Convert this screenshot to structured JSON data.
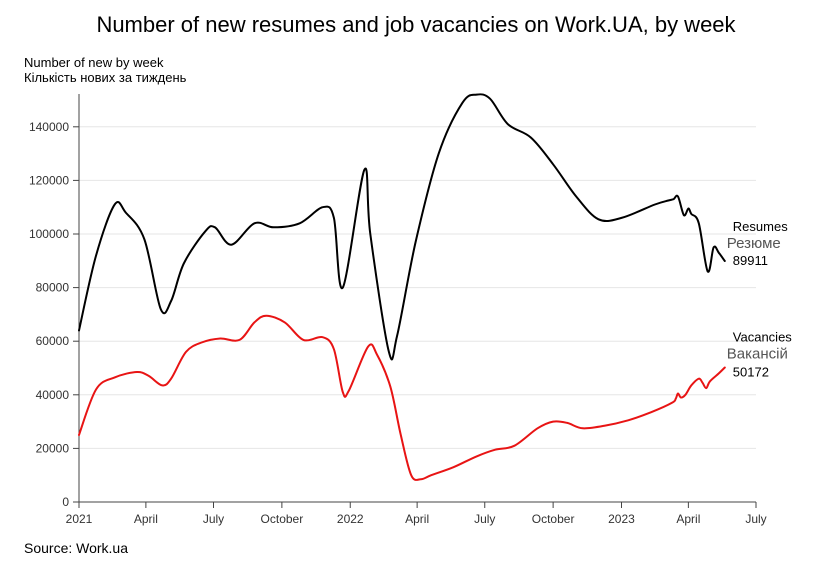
{
  "chart_data": {
    "type": "line",
    "title": "Number of new resumes and job vacancies on Work.UA, by week",
    "ylabel": "Number of new by week",
    "ylabel_uk": "Кількість нових за тиждень",
    "source": "Source: Work.ua",
    "x_range": [
      "2021-01-01",
      "2023-07-01"
    ],
    "ylim": [
      0,
      150000
    ],
    "y_ticks": [
      0,
      20000,
      40000,
      60000,
      80000,
      100000,
      120000,
      140000
    ],
    "x_ticks": [
      {
        "date": "2021-01-01",
        "label": "2021"
      },
      {
        "date": "2021-04-01",
        "label": "April"
      },
      {
        "date": "2021-07-01",
        "label": "July"
      },
      {
        "date": "2021-10-01",
        "label": "October"
      },
      {
        "date": "2022-01-01",
        "label": "2022"
      },
      {
        "date": "2022-04-01",
        "label": "April"
      },
      {
        "date": "2022-07-01",
        "label": "July"
      },
      {
        "date": "2022-10-01",
        "label": "October"
      },
      {
        "date": "2023-01-01",
        "label": "2023"
      },
      {
        "date": "2023-04-01",
        "label": "April"
      },
      {
        "date": "2023-07-01",
        "label": "July"
      }
    ],
    "grid": "horizontal",
    "series": [
      {
        "name": "Resumes",
        "name_uk": "Резюме",
        "last_value": "89911",
        "color": "#000000",
        "points": [
          [
            "2021-01-01",
            64000
          ],
          [
            "2021-01-24",
            92000
          ],
          [
            "2021-02-18",
            111000
          ],
          [
            "2021-03-05",
            108000
          ],
          [
            "2021-03-30",
            98000
          ],
          [
            "2021-04-21",
            72000
          ],
          [
            "2021-05-05",
            75000
          ],
          [
            "2021-05-22",
            89000
          ],
          [
            "2021-06-20",
            101000
          ],
          [
            "2021-07-03",
            102500
          ],
          [
            "2021-07-25",
            96000
          ],
          [
            "2021-08-25",
            104000
          ],
          [
            "2021-09-20",
            102500
          ],
          [
            "2021-10-25",
            104000
          ],
          [
            "2021-11-25",
            110000
          ],
          [
            "2021-12-10",
            106000
          ],
          [
            "2021-12-22",
            80000
          ],
          [
            "2022-01-20",
            124000
          ],
          [
            "2022-01-28",
            100000
          ],
          [
            "2022-02-22",
            56000
          ],
          [
            "2022-03-05",
            62000
          ],
          [
            "2022-03-30",
            97000
          ],
          [
            "2022-04-30",
            130000
          ],
          [
            "2022-06-01",
            149000
          ],
          [
            "2022-06-20",
            152000
          ],
          [
            "2022-07-08",
            150500
          ],
          [
            "2022-08-01",
            141000
          ],
          [
            "2022-09-01",
            136000
          ],
          [
            "2022-10-01",
            126000
          ],
          [
            "2022-11-01",
            114000
          ],
          [
            "2022-12-01",
            105500
          ],
          [
            "2023-01-01",
            106000
          ],
          [
            "2023-02-15",
            111000
          ],
          [
            "2023-03-05",
            112500
          ],
          [
            "2023-03-12",
            113000
          ],
          [
            "2023-03-18",
            114000
          ],
          [
            "2023-03-26",
            107000
          ],
          [
            "2023-04-01",
            109500
          ],
          [
            "2023-04-05",
            107500
          ],
          [
            "2023-04-15",
            104000
          ],
          [
            "2023-04-27",
            86000
          ],
          [
            "2023-05-05",
            95000
          ],
          [
            "2023-05-12",
            93000
          ],
          [
            "2023-05-20",
            89911
          ]
        ]
      },
      {
        "name": "Vacancies",
        "name_uk": "Вакансій",
        "last_value": "50172",
        "color": "#e81414",
        "points": [
          [
            "2021-01-01",
            25000
          ],
          [
            "2021-01-24",
            42000
          ],
          [
            "2021-02-18",
            46500
          ],
          [
            "2021-03-20",
            48500
          ],
          [
            "2021-04-05",
            47000
          ],
          [
            "2021-04-23",
            43500
          ],
          [
            "2021-05-05",
            46000
          ],
          [
            "2021-05-25",
            56000
          ],
          [
            "2021-06-15",
            59500
          ],
          [
            "2021-07-10",
            61000
          ],
          [
            "2021-08-05",
            60500
          ],
          [
            "2021-08-25",
            67000
          ],
          [
            "2021-09-10",
            69500
          ],
          [
            "2021-10-05",
            67000
          ],
          [
            "2021-10-30",
            60500
          ],
          [
            "2021-11-25",
            61500
          ],
          [
            "2021-12-10",
            57000
          ],
          [
            "2021-12-22",
            41000
          ],
          [
            "2021-12-30",
            41500
          ],
          [
            "2022-01-25",
            58000
          ],
          [
            "2022-02-06",
            55000
          ],
          [
            "2022-02-24",
            43000
          ],
          [
            "2022-03-10",
            25000
          ],
          [
            "2022-03-24",
            10000
          ],
          [
            "2022-04-06",
            8500
          ],
          [
            "2022-04-20",
            10000
          ],
          [
            "2022-05-20",
            13000
          ],
          [
            "2022-06-20",
            17000
          ],
          [
            "2022-07-15",
            19500
          ],
          [
            "2022-08-10",
            21000
          ],
          [
            "2022-09-10",
            27500
          ],
          [
            "2022-10-01",
            30000
          ],
          [
            "2022-10-20",
            29500
          ],
          [
            "2022-11-10",
            27500
          ],
          [
            "2022-12-10",
            28500
          ],
          [
            "2023-01-10",
            30500
          ],
          [
            "2023-02-10",
            33500
          ],
          [
            "2023-03-10",
            37000
          ],
          [
            "2023-03-15",
            38500
          ],
          [
            "2023-03-18",
            40500
          ],
          [
            "2023-03-22",
            39000
          ],
          [
            "2023-03-28",
            40000
          ],
          [
            "2023-04-05",
            43500
          ],
          [
            "2023-04-15",
            46000
          ],
          [
            "2023-04-20",
            44500
          ],
          [
            "2023-04-25",
            42500
          ],
          [
            "2023-04-30",
            45000
          ],
          [
            "2023-05-12",
            48000
          ],
          [
            "2023-05-20",
            50172
          ]
        ]
      }
    ]
  }
}
